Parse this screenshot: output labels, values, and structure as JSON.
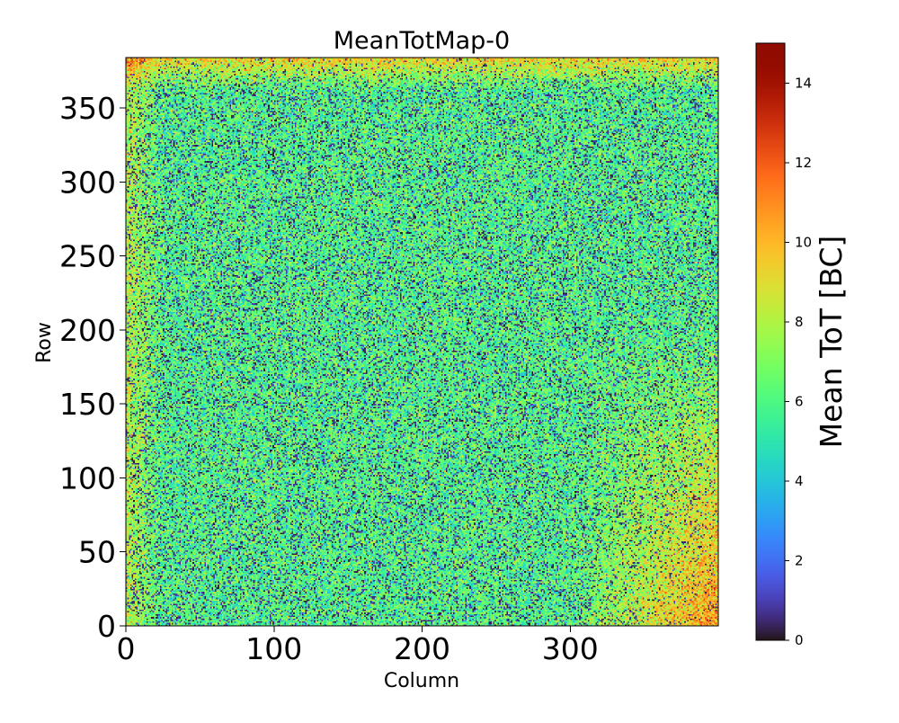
{
  "chart_data": {
    "type": "heatmap",
    "title": "MeanTotMap-0",
    "xlabel": "Column",
    "ylabel": "Row",
    "xlim": [
      0,
      400
    ],
    "ylim": [
      0,
      384
    ],
    "n_columns": 400,
    "n_rows": 384,
    "x_ticks": [
      0,
      100,
      200,
      300
    ],
    "y_ticks": [
      0,
      50,
      100,
      150,
      200,
      250,
      300,
      350
    ],
    "colorbar": {
      "label": "Mean ToT [BC]",
      "range": [
        0,
        15
      ],
      "ticks": [
        0,
        2,
        4,
        6,
        8,
        10,
        12,
        14
      ],
      "colormap": "turbo"
    },
    "value_summary": {
      "typical_value": 6,
      "typical_spread": 2,
      "dead_pixel_value": 0,
      "higher_values_region": "right edge (column 340-400, rows 0-150) and top edge (row 370-384), reaching 9-12",
      "left_edge_values": 7.5
    },
    "grid": false,
    "legend": "none"
  }
}
